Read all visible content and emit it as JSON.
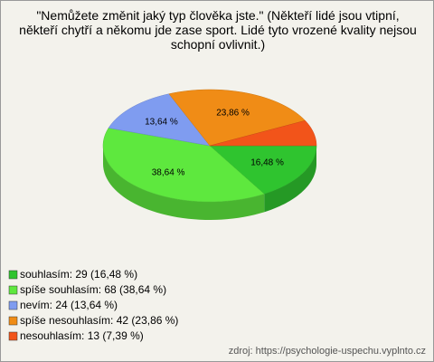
{
  "chart_data": {
    "type": "pie",
    "title": "\"Nemůžete změnit jaký typ člověka jste.\" (Někteří lidé jsou vtipní, někteří chytří a někomu jde zase sport. Lidé tyto vrozené kvality nejsou schopní ovlivnit.)",
    "categories": [
      "souhlasím",
      "spíše souhlasím",
      "nevím",
      "spíše nesouhlasím",
      "nesouhlasím"
    ],
    "legend": [
      "souhlasím: 29 (16,48 %)",
      "spíše souhlasím: 68 (38,64 %)",
      "nevím: 24 (13,64 %)",
      "spíše nesouhlasím: 42 (23,86 %)",
      "nesouhlasím: 13 (7,39 %)"
    ],
    "values": [
      16.48,
      38.64,
      13.64,
      23.86,
      7.39
    ],
    "value_labels": [
      "16,48 %",
      "38,64 %",
      "13,64 %",
      "23,86 %",
      null
    ],
    "colors": [
      "#2fc42f",
      "#5ee83e",
      "#7f9cf0",
      "#f08c16",
      "#f2541a"
    ],
    "source": "zdroj: https://psychologie-uspechu.vyplnto.cz"
  }
}
